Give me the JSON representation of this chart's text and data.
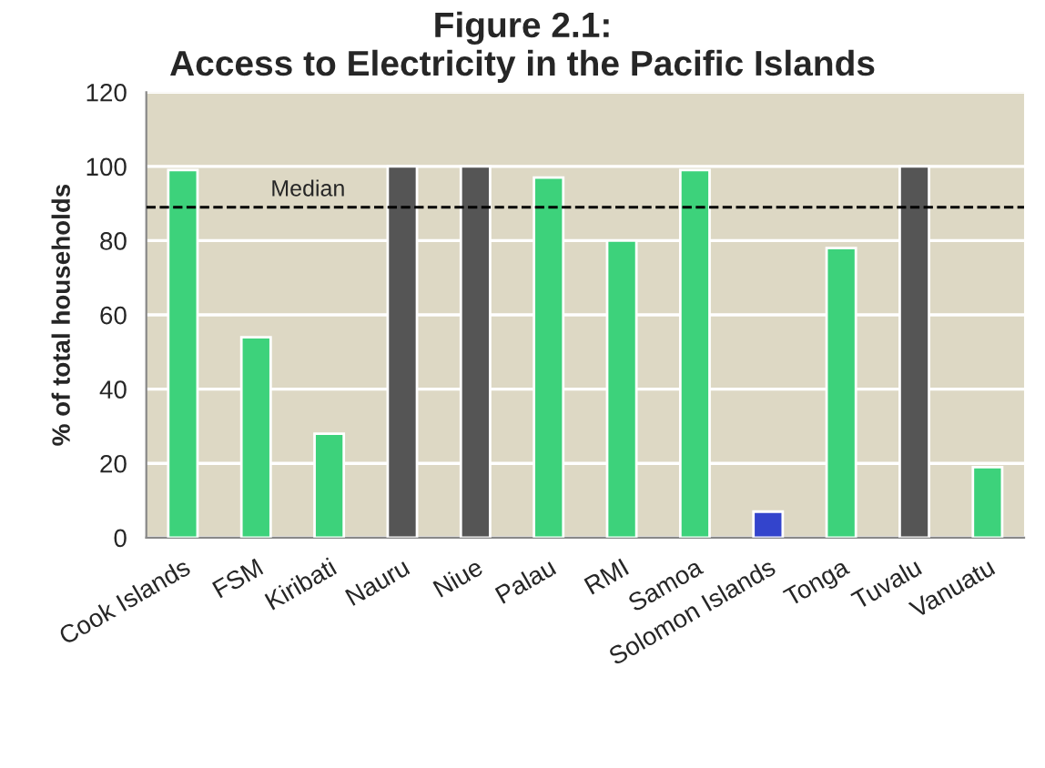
{
  "chart_data": {
    "type": "bar",
    "title": "Figure 2.1:\nAccess to Electricity in the Pacific Islands",
    "ylabel": "% of total households",
    "categories": [
      "Cook Islands",
      "FSM",
      "Kiribati",
      "Nauru",
      "Niue",
      "Palau",
      "RMI",
      "Samoa",
      "Solomon Islands",
      "Tonga",
      "Tuvalu",
      "Vanuatu"
    ],
    "values": [
      99,
      54,
      28,
      100,
      100,
      97,
      80,
      99,
      7,
      78,
      100,
      19
    ],
    "colors": [
      "#3dd27b",
      "#3dd27b",
      "#3dd27b",
      "#555555",
      "#555555",
      "#3dd27b",
      "#3dd27b",
      "#3dd27b",
      "#3344cc",
      "#3dd27b",
      "#555555",
      "#3dd27b"
    ],
    "ylim": [
      0,
      120
    ],
    "yticks": [
      0,
      20,
      40,
      60,
      80,
      100,
      120
    ],
    "grid": "y",
    "ref_lines": [
      {
        "axis": "y",
        "value": 89,
        "label": "Median",
        "color": "#000000",
        "line_style": "dashed"
      }
    ]
  }
}
